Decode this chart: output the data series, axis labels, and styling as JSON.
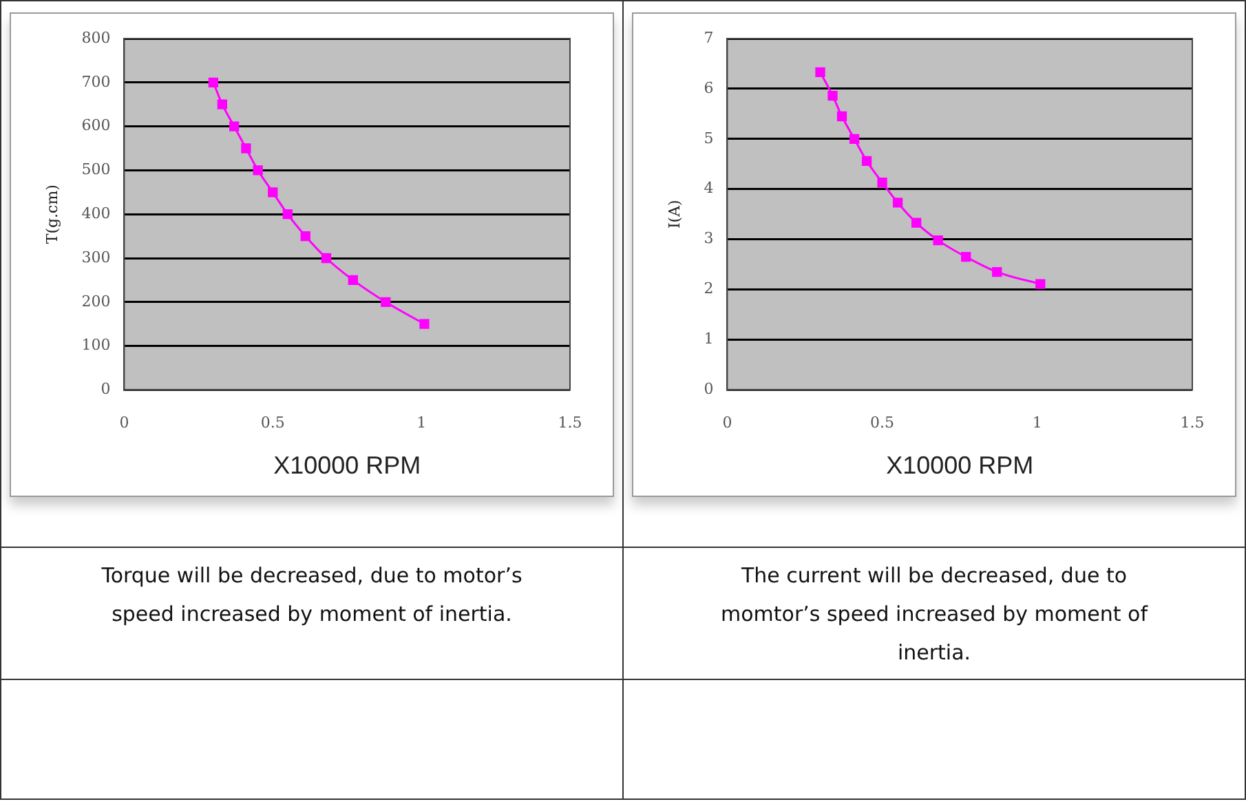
{
  "chart_data": [
    {
      "type": "line",
      "xlabel": "X10000 RPM",
      "ylabel": "T(g.cm)",
      "marker": "square",
      "grid": "y",
      "legend": false,
      "x": [
        0.3,
        0.33,
        0.37,
        0.41,
        0.45,
        0.5,
        0.55,
        0.61,
        0.68,
        0.77,
        0.88,
        1.01
      ],
      "series": [
        {
          "color": "#ff00ff",
          "values": [
            700,
            650,
            600,
            550,
            500,
            450,
            400,
            350,
            300,
            250,
            200,
            150
          ]
        }
      ],
      "xlim": [
        0,
        1.5
      ],
      "xticks": [
        0,
        0.5,
        1,
        1.5
      ],
      "ylim": [
        0,
        800
      ],
      "yticks": [
        0,
        100,
        200,
        300,
        400,
        500,
        600,
        700,
        800
      ],
      "annotations": [
        "Torque will be decreased, due to motor’s speed increased by moment of inertia."
      ]
    },
    {
      "type": "line",
      "xlabel": "X10000 RPM",
      "ylabel": "I(A)",
      "marker": "square",
      "grid": "y",
      "legend": false,
      "x": [
        0.3,
        0.34,
        0.37,
        0.41,
        0.45,
        0.5,
        0.55,
        0.61,
        0.68,
        0.77,
        0.87,
        1.01
      ],
      "series": [
        {
          "color": "#ff00ff",
          "values": [
            6.33,
            5.86,
            5.45,
            5.0,
            4.56,
            4.13,
            3.73,
            3.33,
            2.98,
            2.65,
            2.35,
            2.11
          ]
        }
      ],
      "xlim": [
        0,
        1.5
      ],
      "xticks": [
        0,
        0.5,
        1,
        1.5
      ],
      "ylim": [
        0,
        7
      ],
      "yticks": [
        0,
        1,
        2,
        3,
        4,
        5,
        6,
        7
      ],
      "annotations": [
        "The current will be decreased, due to momtor’s speed increased by moment of inertia."
      ]
    }
  ]
}
